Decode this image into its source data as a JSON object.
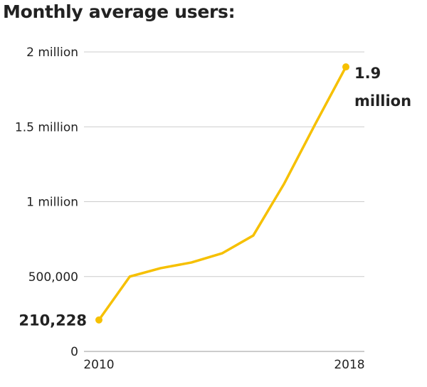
{
  "chart_data": {
    "type": "line",
    "title": "Monthly average users:",
    "x": [
      2010,
      2011,
      2012,
      2013,
      2014,
      2015,
      2016,
      2017,
      2018
    ],
    "series": [
      {
        "values": [
          210228,
          500000,
          556000,
          594000,
          656000,
          774000,
          1120000,
          1515000,
          1900000
        ],
        "color": "#F6C000"
      }
    ],
    "ylim": [
      0,
      2000000
    ],
    "y_ticks": [
      0,
      500000,
      1000000,
      1500000,
      2000000
    ],
    "y_tick_labels": [
      "0",
      "500,000",
      "1 million",
      "1.5 million",
      "2 million"
    ],
    "x_tick_labels": [
      "2010",
      "2018"
    ],
    "annotations": [
      {
        "x": 2010,
        "text": "210,228"
      },
      {
        "x": 2018,
        "text": "1.9 million",
        "lines": [
          "1.9",
          "million"
        ]
      }
    ],
    "grid": true,
    "grid_color": "#cccccc"
  }
}
